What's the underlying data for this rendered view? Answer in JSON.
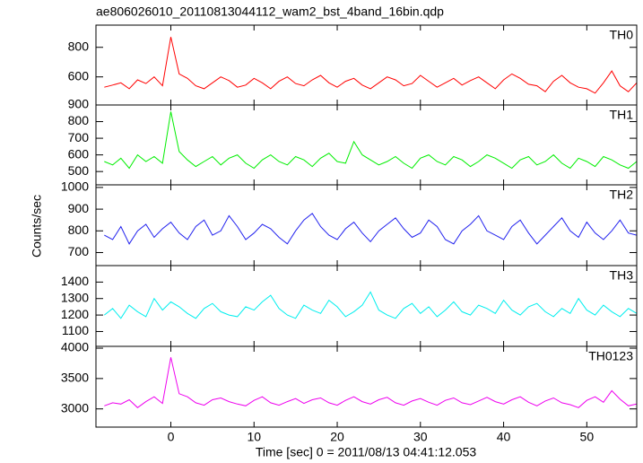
{
  "chart_data": {
    "type": "line",
    "title": "ae806026010_20110813044112_wam2_bst_4band_16bin.qdp",
    "xlabel": "Time [sec] 0 = 2011/08/13 04:41:12.053",
    "ylabel": "Counts/sec",
    "xlim": [
      -9,
      56
    ],
    "xticks": [
      0,
      10,
      20,
      30,
      40,
      50
    ],
    "x": [
      -8,
      -7,
      -6,
      -5,
      -4,
      -3,
      -2,
      -1,
      0,
      1,
      2,
      3,
      4,
      5,
      6,
      7,
      8,
      9,
      10,
      11,
      12,
      13,
      14,
      15,
      16,
      17,
      18,
      19,
      20,
      21,
      22,
      23,
      24,
      25,
      26,
      27,
      28,
      29,
      30,
      31,
      32,
      33,
      34,
      35,
      36,
      37,
      38,
      39,
      40,
      41,
      42,
      43,
      44,
      45,
      46,
      47,
      48,
      49,
      50,
      51,
      52,
      53,
      54,
      55,
      56
    ],
    "panels": [
      {
        "name": "TH0",
        "color": "#ff0000",
        "ylim": [
          410,
          950
        ],
        "yticks": [
          600,
          800
        ],
        "values": [
          530,
          545,
          560,
          520,
          580,
          555,
          600,
          540,
          870,
          620,
          590,
          540,
          520,
          560,
          600,
          575,
          530,
          545,
          590,
          560,
          520,
          570,
          600,
          555,
          540,
          580,
          610,
          560,
          530,
          570,
          590,
          545,
          520,
          560,
          600,
          580,
          540,
          555,
          610,
          570,
          530,
          560,
          590,
          545,
          575,
          600,
          560,
          520,
          580,
          620,
          590,
          550,
          540,
          500,
          570,
          610,
          560,
          530,
          520,
          490,
          560,
          640,
          540,
          500,
          560
        ]
      },
      {
        "name": "TH1",
        "color": "#00ee00",
        "ylim": [
          420,
          900
        ],
        "yticks": [
          500,
          600,
          700,
          800,
          900
        ],
        "values": [
          560,
          540,
          580,
          520,
          600,
          560,
          590,
          550,
          860,
          620,
          570,
          530,
          560,
          590,
          540,
          580,
          600,
          550,
          520,
          570,
          600,
          560,
          540,
          590,
          570,
          530,
          580,
          610,
          560,
          550,
          680,
          600,
          570,
          540,
          560,
          590,
          550,
          520,
          580,
          600,
          560,
          540,
          590,
          570,
          530,
          560,
          600,
          580,
          550,
          520,
          570,
          590,
          540,
          560,
          600,
          550,
          520,
          580,
          560,
          530,
          590,
          570,
          540,
          520,
          560
        ]
      },
      {
        "name": "TH2",
        "color": "#2222ee",
        "ylim": [
          640,
          1012
        ],
        "yticks": [
          700,
          800,
          900,
          1000
        ],
        "values": [
          780,
          760,
          820,
          740,
          800,
          830,
          770,
          810,
          840,
          790,
          760,
          820,
          850,
          780,
          800,
          870,
          820,
          760,
          790,
          830,
          810,
          770,
          740,
          800,
          850,
          880,
          820,
          780,
          760,
          810,
          840,
          790,
          750,
          800,
          830,
          860,
          810,
          770,
          790,
          850,
          820,
          760,
          740,
          800,
          830,
          870,
          800,
          780,
          760,
          820,
          850,
          790,
          740,
          780,
          820,
          860,
          800,
          770,
          840,
          790,
          760,
          800,
          850,
          790,
          780
        ]
      },
      {
        "name": "TH3",
        "color": "#00eeee",
        "ylim": [
          1010,
          1500
        ],
        "yticks": [
          1100,
          1200,
          1300,
          1400
        ],
        "values": [
          1200,
          1240,
          1180,
          1260,
          1220,
          1190,
          1300,
          1230,
          1280,
          1250,
          1210,
          1180,
          1240,
          1270,
          1220,
          1200,
          1190,
          1250,
          1230,
          1280,
          1320,
          1240,
          1200,
          1180,
          1260,
          1230,
          1210,
          1290,
          1250,
          1190,
          1220,
          1260,
          1340,
          1230,
          1200,
          1180,
          1240,
          1270,
          1210,
          1250,
          1190,
          1230,
          1280,
          1220,
          1200,
          1260,
          1240,
          1210,
          1290,
          1230,
          1200,
          1250,
          1270,
          1220,
          1190,
          1240,
          1210,
          1300,
          1230,
          1200,
          1260,
          1220,
          1190,
          1240,
          1210
        ]
      },
      {
        "name": "TH0123",
        "color": "#ee00ee",
        "ylim": [
          2700,
          4030
        ],
        "yticks": [
          3000,
          3500,
          4000
        ],
        "values": [
          3050,
          3100,
          3080,
          3150,
          3020,
          3120,
          3200,
          3090,
          3850,
          3250,
          3200,
          3100,
          3060,
          3150,
          3180,
          3120,
          3080,
          3050,
          3140,
          3200,
          3100,
          3060,
          3120,
          3170,
          3090,
          3150,
          3180,
          3100,
          3060,
          3140,
          3200,
          3120,
          3080,
          3150,
          3190,
          3100,
          3060,
          3130,
          3170,
          3110,
          3060,
          3140,
          3180,
          3100,
          3070,
          3130,
          3190,
          3120,
          3080,
          3150,
          3200,
          3110,
          3050,
          3130,
          3180,
          3100,
          3070,
          3020,
          3140,
          3200,
          3110,
          3300,
          3160,
          3050,
          3080
        ]
      }
    ]
  }
}
